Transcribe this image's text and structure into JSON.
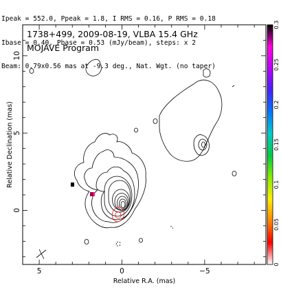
{
  "header": {
    "line1": "Ipeak = 552.0, Ppeak = 1.8, I RMS = 0.16, P RMS = 0.18",
    "line2": "Ibase = 0.40, Pbase = 0.53 (mJy/beam), steps: x 2",
    "line3": "Beam: 0.79x0.56 mas at -9.3 deg., Nat. Wgt. (no taper)"
  },
  "chart_data": {
    "type": "contour",
    "title": "1738+499, 2009-08-19, VLBA 15.4 GHz",
    "subtitle": "MOJAVE Program",
    "xlabel": "Relative R.A. (mas)",
    "ylabel": "Relative Declination (mas)",
    "xlim": [
      6.0,
      -8.7
    ],
    "ylim": [
      -3.5,
      12.0
    ],
    "x_ticks": [
      5,
      0,
      -5
    ],
    "y_ticks": [
      0,
      5,
      10
    ],
    "core": {
      "x": 0.0,
      "y": 0.0
    },
    "jet_component": {
      "x": -4.8,
      "y": 4.5
    },
    "colorbar": {
      "min": 0,
      "max": 0.3,
      "ticks": [
        0,
        0.05,
        0.1,
        0.15,
        0.2,
        0.25,
        0.3
      ],
      "colors": [
        "#ffffff",
        "#ff0000",
        "#ff8800",
        "#ffee00",
        "#88ee00",
        "#00cc44",
        "#00cccc",
        "#0077ff",
        "#4422ff",
        "#bb00ff",
        "#ff00dd",
        "#000000"
      ]
    }
  }
}
